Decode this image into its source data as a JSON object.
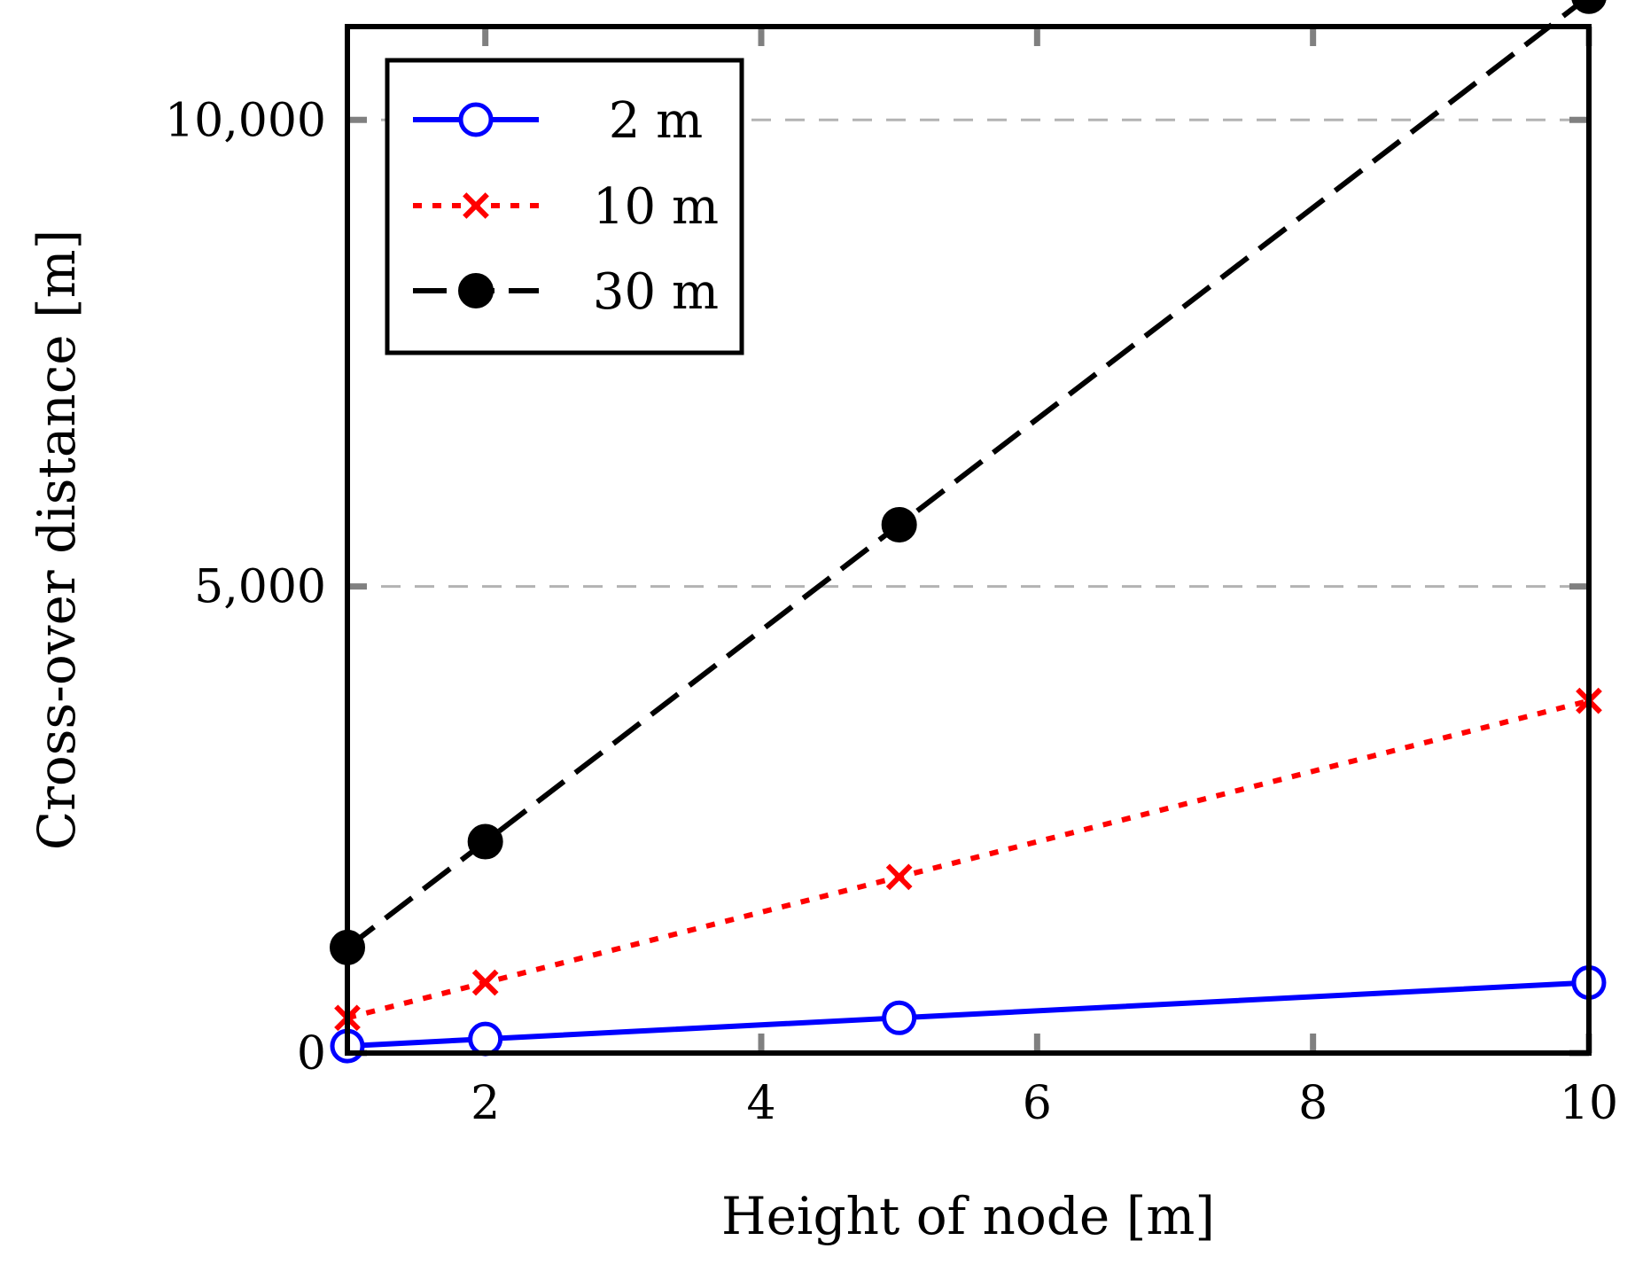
{
  "chart_data": {
    "type": "line",
    "title": "",
    "xlabel": "Height of node [m]",
    "ylabel": "Cross-over distance [m]",
    "xlim": [
      1,
      10
    ],
    "ylim": [
      0,
      11000
    ],
    "x_ticks": [
      2,
      4,
      6,
      8,
      10
    ],
    "x_tick_labels": [
      "2",
      "4",
      "6",
      "8",
      "10"
    ],
    "y_ticks": [
      0,
      5000,
      10000
    ],
    "y_tick_labels": [
      "0",
      "5,000",
      "10,000"
    ],
    "grid": "horizontal-dashed",
    "legend_position": "top-left",
    "x": [
      1,
      2,
      5,
      10
    ],
    "series": [
      {
        "name": "2 m",
        "values": [
          75,
          151,
          377,
          755
        ],
        "color": "#0000ff",
        "line_style": "solid",
        "marker": "open-circle"
      },
      {
        "name": "10 m",
        "values": [
          377,
          755,
          1887,
          3775
        ],
        "color": "#ff0000",
        "line_style": "dotted",
        "marker": "x"
      },
      {
        "name": "30 m",
        "values": [
          1132,
          2265,
          5662,
          11325
        ],
        "color": "#000000",
        "line_style": "dashed",
        "marker": "filled-circle"
      }
    ]
  }
}
